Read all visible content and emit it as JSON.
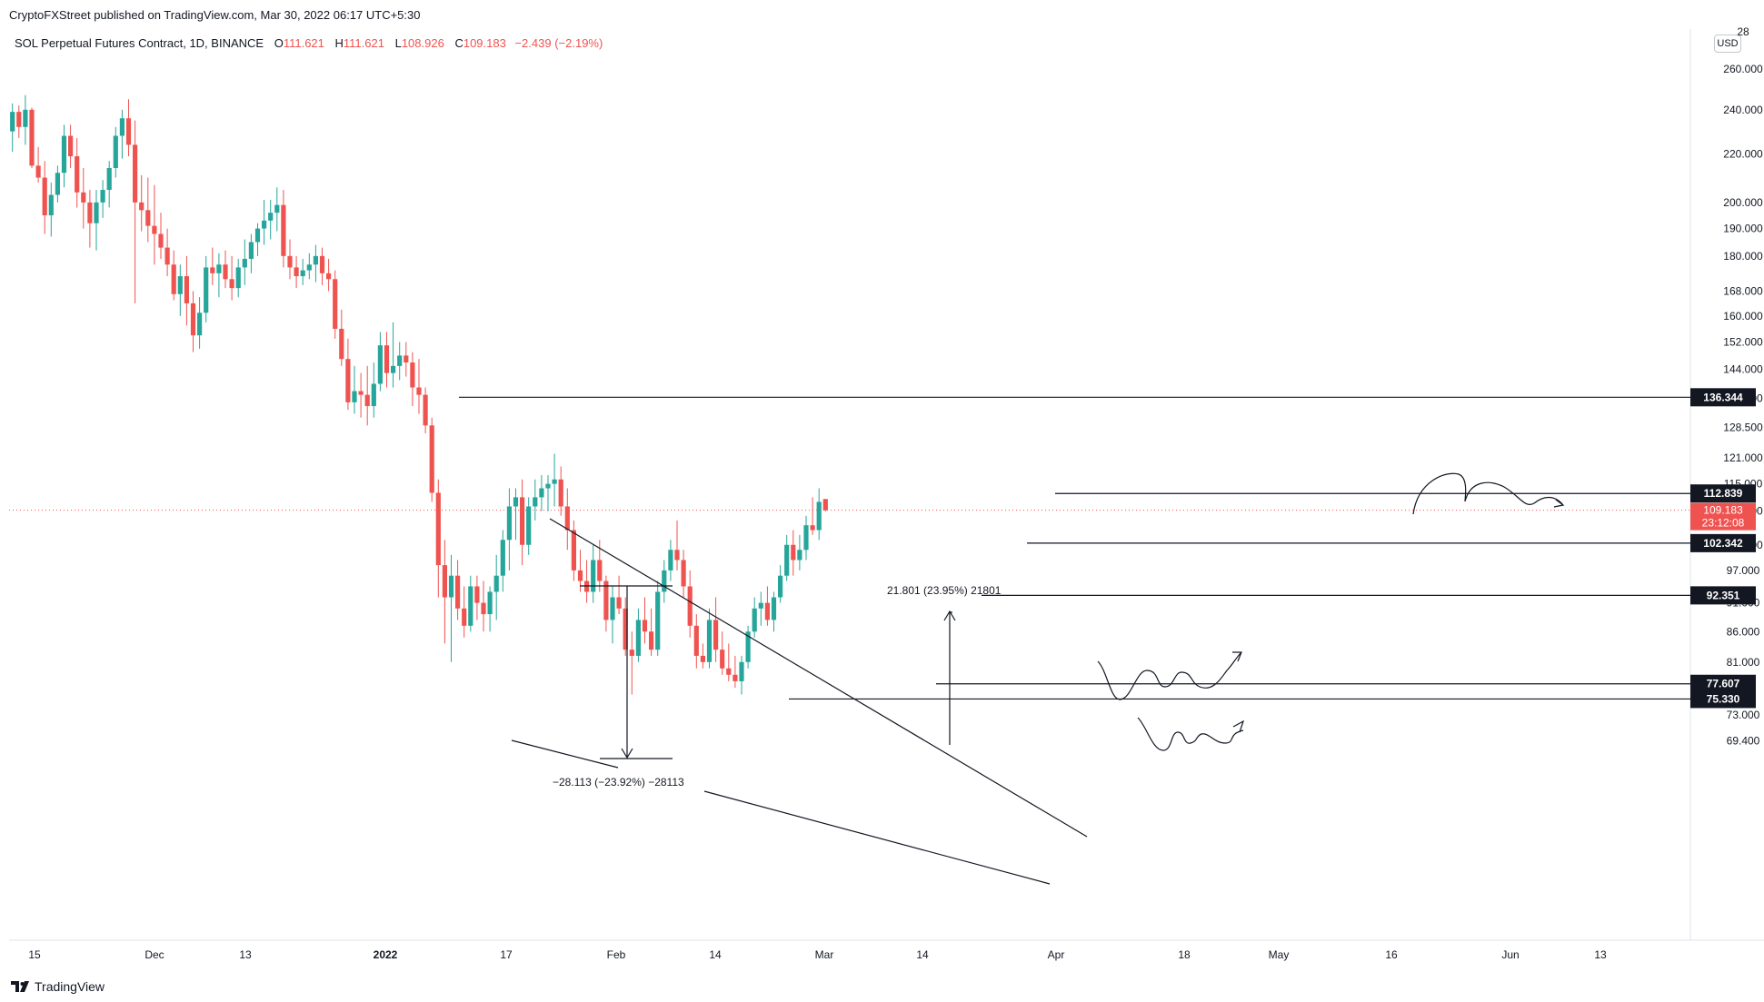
{
  "header": {
    "published": "CryptoFXStreet published on TradingView.com, Mar 30, 2022 06:17 UTC+5:30"
  },
  "legend": {
    "symbol": "SOL Perpetual Futures Contract, 1D, BINANCE",
    "open_label": "O",
    "open": "111.621",
    "high_label": "H",
    "high": "111.621",
    "low_label": "L",
    "low": "108.926",
    "close_label": "C",
    "close": "109.183",
    "change": "−2.439 (−2.19%)"
  },
  "currency": "USD",
  "footer": {
    "brand": "TradingView"
  },
  "colors": {
    "up": "#26a69a",
    "down": "#ef5350",
    "line": "#131722",
    "tag_bg": "#131722",
    "grid_axis": "#e0e3eb"
  },
  "chart_data": {
    "type": "candlestick",
    "scale": "log",
    "price_range": [
      66,
      290
    ],
    "price_axis_ticks": [
      "69.400",
      "73.000",
      "81.000",
      "86.000",
      "91.000",
      "97.000",
      "102.000",
      "109.000",
      "115.000",
      "121.000",
      "128.500",
      "136.000",
      "144.000",
      "152.000",
      "160.000",
      "168.000",
      "180.000",
      "190.000",
      "200.000",
      "220.000",
      "240.000",
      "260.000",
      "28"
    ],
    "time_axis_labels": [
      "15",
      "Dec",
      "13",
      "2022",
      "17",
      "Feb",
      "14",
      "Mar",
      "14",
      "Apr",
      "18",
      "May",
      "16",
      "Jun",
      "13"
    ],
    "time_axis_bold": [
      "2022"
    ],
    "last_price": {
      "value": "109.183",
      "countdown": "23:12:08"
    },
    "horizontal_levels": [
      {
        "label": "136.344"
      },
      {
        "label": "112.839"
      },
      {
        "label": "102.342"
      },
      {
        "label": "92.351"
      },
      {
        "label": "77.607"
      },
      {
        "label": "75.330"
      }
    ],
    "annotations": {
      "measure_down": "−28.113 (−23.92%) −28113",
      "measure_up": "21.801 (23.95%) 21801"
    },
    "candles": [
      [
        230,
        243,
        221,
        239
      ],
      [
        239,
        242,
        227,
        232
      ],
      [
        232,
        247,
        224,
        240
      ],
      [
        240,
        241,
        214,
        215
      ],
      [
        215,
        223,
        208,
        210
      ],
      [
        210,
        217,
        188,
        195
      ],
      [
        195,
        208,
        187,
        203
      ],
      [
        203,
        215,
        200,
        212
      ],
      [
        212,
        233,
        206,
        228
      ],
      [
        228,
        233,
        214,
        219
      ],
      [
        219,
        227,
        198,
        204
      ],
      [
        204,
        214,
        190,
        200
      ],
      [
        200,
        205,
        183,
        192
      ],
      [
        192,
        205,
        182,
        200
      ],
      [
        200,
        209,
        194,
        205
      ],
      [
        205,
        217,
        198,
        214
      ],
      [
        214,
        232,
        210,
        228
      ],
      [
        228,
        240,
        218,
        236
      ],
      [
        236,
        245,
        219,
        224
      ],
      [
        224,
        235,
        164,
        200
      ],
      [
        200,
        211,
        189,
        197
      ],
      [
        197,
        210,
        185,
        191
      ],
      [
        191,
        207,
        177,
        188
      ],
      [
        188,
        196,
        179,
        183
      ],
      [
        183,
        190,
        173,
        177
      ],
      [
        177,
        182,
        165,
        167
      ],
      [
        167,
        177,
        160,
        173
      ],
      [
        173,
        180,
        157,
        164
      ],
      [
        164,
        168,
        149,
        154
      ],
      [
        154,
        166,
        150,
        161
      ],
      [
        161,
        180,
        158,
        176
      ],
      [
        176,
        183,
        170,
        174
      ],
      [
        174,
        181,
        166,
        177
      ],
      [
        177,
        182,
        169,
        172
      ],
      [
        172,
        180,
        165,
        169
      ],
      [
        169,
        179,
        166,
        176
      ],
      [
        176,
        186,
        170,
        179
      ],
      [
        179,
        188,
        174,
        185
      ],
      [
        185,
        192,
        180,
        190
      ],
      [
        190,
        201,
        184,
        193
      ],
      [
        193,
        201,
        186,
        196
      ],
      [
        196,
        206,
        189,
        199
      ],
      [
        199,
        205,
        176,
        180
      ],
      [
        180,
        186,
        172,
        176
      ],
      [
        176,
        180,
        169,
        173
      ],
      [
        173,
        179,
        170,
        175
      ],
      [
        175,
        181,
        172,
        177
      ],
      [
        177,
        184,
        171,
        180
      ],
      [
        180,
        183,
        170,
        174
      ],
      [
        174,
        179,
        168,
        172
      ],
      [
        172,
        175,
        153,
        156
      ],
      [
        156,
        162,
        145,
        147
      ],
      [
        147,
        153,
        133,
        135
      ],
      [
        135,
        145,
        132,
        138
      ],
      [
        138,
        143,
        131,
        137
      ],
      [
        137,
        145,
        129,
        134
      ],
      [
        134,
        146,
        131,
        140
      ],
      [
        140,
        155,
        138,
        151
      ],
      [
        151,
        155,
        139,
        143
      ],
      [
        143,
        158,
        139,
        145
      ],
      [
        145,
        152,
        141,
        148
      ],
      [
        148,
        152,
        142,
        146
      ],
      [
        146,
        149,
        134,
        139
      ],
      [
        139,
        147,
        132,
        137
      ],
      [
        137,
        139,
        127,
        129
      ],
      [
        129,
        131,
        111,
        113
      ],
      [
        113,
        116,
        92,
        98
      ],
      [
        98,
        103,
        84,
        92
      ],
      [
        92,
        100,
        81,
        96
      ],
      [
        96,
        99,
        88,
        90
      ],
      [
        90,
        94,
        85,
        87
      ],
      [
        87,
        96,
        86,
        94
      ],
      [
        94,
        96,
        88,
        91
      ],
      [
        91,
        95,
        86,
        89
      ],
      [
        89,
        94,
        86,
        93
      ],
      [
        93,
        100,
        88,
        96
      ],
      [
        96,
        105,
        93,
        103
      ],
      [
        103,
        114,
        97,
        110
      ],
      [
        110,
        114,
        103,
        112
      ],
      [
        112,
        116,
        98,
        102
      ],
      [
        102,
        112,
        100,
        110
      ],
      [
        110,
        116,
        107,
        112
      ],
      [
        112,
        117,
        109,
        114
      ],
      [
        114,
        117,
        109,
        115
      ],
      [
        115,
        122,
        110,
        116
      ],
      [
        116,
        119,
        108,
        110
      ],
      [
        110,
        114,
        101,
        105
      ],
      [
        105,
        107,
        95,
        97
      ],
      [
        97,
        101,
        93,
        95
      ],
      [
        95,
        99,
        91,
        93
      ],
      [
        93,
        102,
        91,
        99
      ],
      [
        99,
        103,
        93,
        95
      ],
      [
        95,
        96,
        86,
        88
      ],
      [
        88,
        94,
        84,
        92
      ],
      [
        92,
        96,
        89,
        90
      ],
      [
        90,
        92,
        82,
        83
      ],
      [
        83,
        86,
        76,
        82
      ],
      [
        82,
        90,
        81,
        88
      ],
      [
        88,
        92,
        84,
        86
      ],
      [
        86,
        90,
        82,
        83
      ],
      [
        83,
        95,
        82,
        93
      ],
      [
        93,
        99,
        91,
        97
      ],
      [
        97,
        103,
        95,
        101
      ],
      [
        101,
        107,
        97,
        99
      ],
      [
        99,
        101,
        92,
        94
      ],
      [
        94,
        97,
        85,
        87
      ],
      [
        87,
        89,
        80,
        82
      ],
      [
        82,
        84,
        80,
        81
      ],
      [
        81,
        90,
        80,
        88
      ],
      [
        88,
        92,
        81,
        83
      ],
      [
        83,
        86,
        79,
        80
      ],
      [
        80,
        84,
        78,
        79
      ],
      [
        79,
        82,
        77,
        78
      ],
      [
        78,
        82,
        76,
        81
      ],
      [
        81,
        87,
        80,
        86
      ],
      [
        86,
        92,
        85,
        90
      ],
      [
        90,
        93,
        87,
        91
      ],
      [
        91,
        94,
        87,
        88
      ],
      [
        88,
        93,
        86,
        92
      ],
      [
        92,
        98,
        91,
        96
      ],
      [
        96,
        104,
        95,
        102
      ],
      [
        102,
        105,
        96,
        99
      ],
      [
        99,
        104,
        97,
        101
      ],
      [
        101,
        108,
        99,
        106
      ],
      [
        106,
        112,
        104,
        105
      ],
      [
        105,
        114,
        103,
        111
      ],
      [
        111.621,
        111.621,
        108.926,
        109.183
      ]
    ]
  }
}
